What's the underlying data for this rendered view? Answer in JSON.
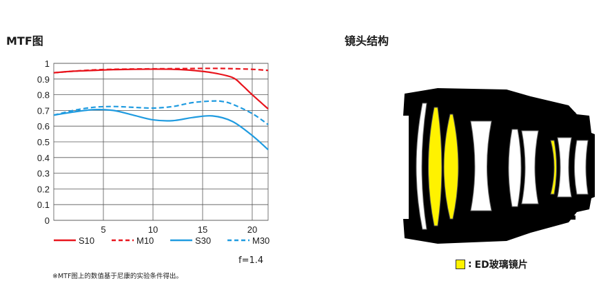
{
  "colors": {
    "s_series": "#e8141c",
    "m30_series": "#1f9be0",
    "s30_series": "#1f9be0",
    "ed_glass": "#fff200"
  },
  "headings": {
    "mtf": "MTF图",
    "lens": "镜头结构"
  },
  "aperture_label": "f=1.4",
  "footnote": "※MTF图上的数值基于尼康的实验条件得出。",
  "ed_legend": {
    "separator": ":",
    "label": "ED玻璃镜片"
  },
  "chart_data": {
    "type": "line",
    "title": "MTF图",
    "xlabel": "",
    "ylabel": "",
    "xlim": [
      0,
      21.6
    ],
    "ylim": [
      0,
      1
    ],
    "grid": true,
    "x_ticks": [
      5,
      10,
      15,
      20
    ],
    "y_ticks": [
      "1",
      "0.9",
      "0.8",
      "0.7",
      "0.6",
      "0.5",
      "0.4",
      "0.3",
      "0.2",
      "0.1",
      "0"
    ],
    "legend_position": "bottom",
    "series": [
      {
        "name": "S10",
        "style": "solid",
        "color": "#e8141c",
        "x": [
          0,
          2,
          4,
          6,
          8,
          10,
          12,
          14,
          16,
          18,
          19,
          20,
          21.6
        ],
        "y": [
          0.94,
          0.95,
          0.955,
          0.96,
          0.962,
          0.963,
          0.962,
          0.955,
          0.94,
          0.91,
          0.86,
          0.8,
          0.71
        ]
      },
      {
        "name": "M10",
        "style": "dashed",
        "color": "#e8141c",
        "x": [
          0,
          2,
          4,
          6,
          8,
          10,
          12,
          14,
          16,
          18,
          20,
          21.6
        ],
        "y": [
          0.94,
          0.95,
          0.958,
          0.962,
          0.964,
          0.965,
          0.966,
          0.967,
          0.968,
          0.966,
          0.962,
          0.955
        ]
      },
      {
        "name": "S30",
        "style": "solid",
        "color": "#1f9be0",
        "x": [
          0,
          2,
          4,
          6,
          8,
          10,
          12,
          14,
          16,
          18,
          20,
          21.6
        ],
        "y": [
          0.67,
          0.69,
          0.705,
          0.7,
          0.67,
          0.64,
          0.635,
          0.655,
          0.665,
          0.63,
          0.54,
          0.45
        ]
      },
      {
        "name": "M30",
        "style": "dashed",
        "color": "#1f9be0",
        "x": [
          0,
          2,
          4,
          6,
          8,
          10,
          12,
          14,
          16,
          17,
          18,
          20,
          21.6
        ],
        "y": [
          0.67,
          0.7,
          0.72,
          0.725,
          0.72,
          0.715,
          0.725,
          0.75,
          0.76,
          0.757,
          0.74,
          0.68,
          0.61
        ]
      }
    ]
  }
}
